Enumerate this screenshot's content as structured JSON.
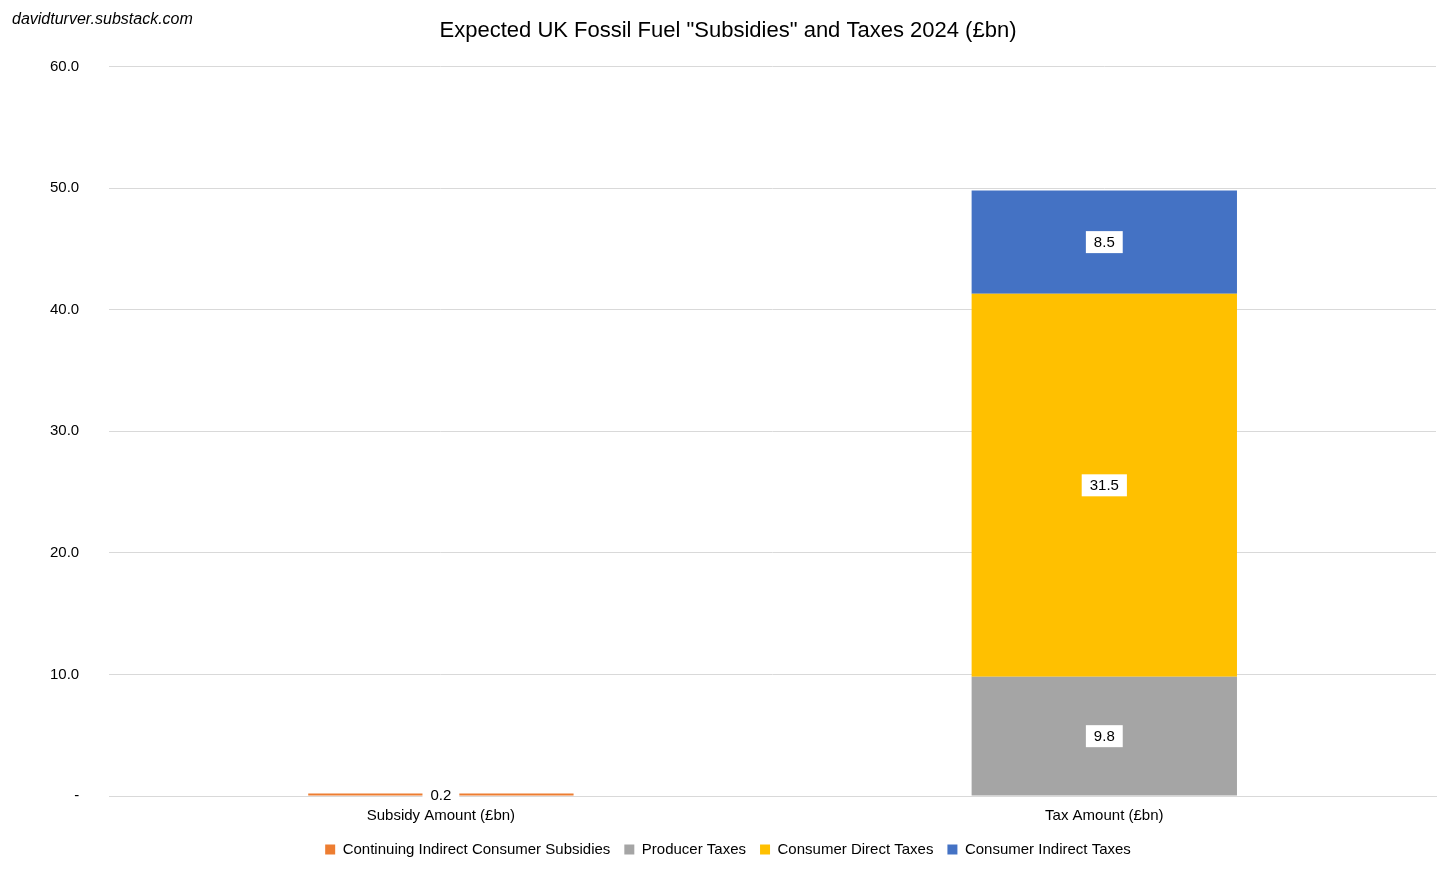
{
  "chart_data": {
    "type": "bar",
    "title": "Expected UK Fossil Fuel \"Subsidies\" and Taxes 2024 (£bn)",
    "annotations": [
      "davidturver.substack.com"
    ],
    "categories": [
      "Subsidy Amount (£bn)",
      "Tax Amount (£bn)"
    ],
    "series": [
      {
        "name": "Continuing Indirect Consumer Subsidies",
        "color": "#ed7d31",
        "values": [
          0.2,
          null
        ]
      },
      {
        "name": "Producer Taxes",
        "color": "#a5a5a5",
        "values": [
          null,
          9.8
        ]
      },
      {
        "name": "Consumer Direct Taxes",
        "color": "#ffc000",
        "values": [
          null,
          31.5
        ]
      },
      {
        "name": "Consumer Indirect Taxes",
        "color": "#4472c4",
        "values": [
          null,
          8.5
        ]
      }
    ],
    "ylim": [
      0,
      60
    ],
    "yticks": [
      {
        "value": 0,
        "label": "-"
      },
      {
        "value": 10,
        "label": "10.0"
      },
      {
        "value": 20,
        "label": "20.0"
      },
      {
        "value": 30,
        "label": "30.0"
      },
      {
        "value": 40,
        "label": "40.0"
      },
      {
        "value": 50,
        "label": "50.0"
      },
      {
        "value": 60,
        "label": "60.0"
      }
    ],
    "stacked": true,
    "grid": true,
    "legend": "bottom",
    "data_labels": true
  }
}
